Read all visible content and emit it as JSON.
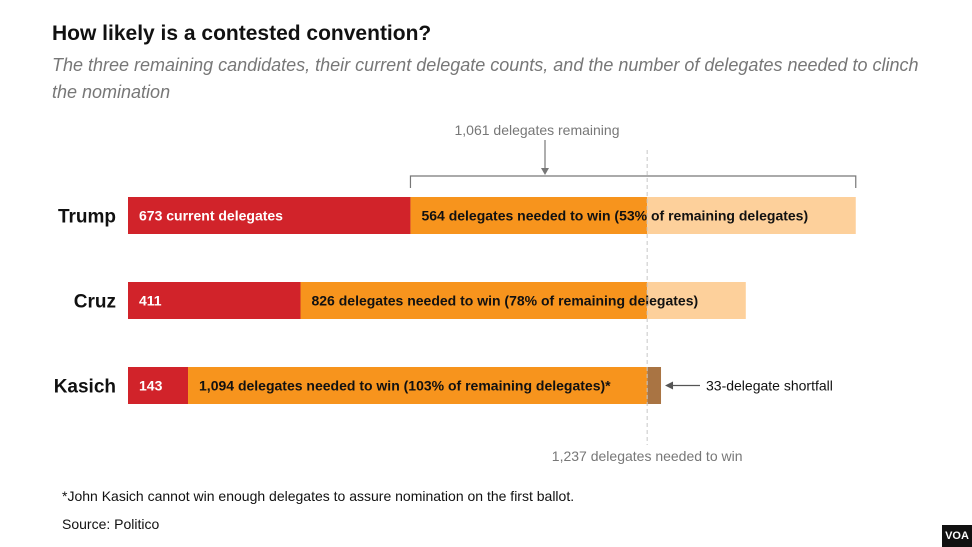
{
  "title": "How likely is a contested convention?",
  "subtitle": "The three remaining candidates, their current delegate counts, and the number of delegates needed to clinch the nomination",
  "footnote": "*John Kasich cannot win enough delegates to assure nomination on the first ballot.",
  "source": "Source: Politico",
  "logo": "VOA",
  "colors": {
    "current": "#d1232a",
    "needed": "#f7941d",
    "remaining": "#fdd09b",
    "shortfall": "#a97443",
    "annotation": "#777777"
  },
  "chart_data": {
    "type": "bar",
    "orientation": "horizontal",
    "stacked": true,
    "total_scale": 1734,
    "remaining_delegates": 1061,
    "needed_to_win": 1237,
    "categories": [
      "Trump",
      "Cruz",
      "Kasich"
    ],
    "series": [
      {
        "key": "current",
        "values": [
          673,
          411,
          143
        ]
      },
      {
        "key": "needed",
        "values": [
          564,
          826,
          1094
        ]
      },
      {
        "key": "remaining",
        "values": [
          497,
          235,
          0
        ]
      },
      {
        "key": "shortfall",
        "values": [
          0,
          0,
          33
        ]
      }
    ],
    "bar_labels": [
      {
        "current": "673 current delegates",
        "needed": "564 delegates needed to win (53% of remaining delegates)"
      },
      {
        "current": "411",
        "needed": "826 delegates needed to win (78% of remaining delegates)"
      },
      {
        "current": "143",
        "needed": "1,094 delegates needed to win (103% of remaining delegates)*"
      }
    ],
    "annotations": {
      "remaining": "1,061 delegates remaining",
      "threshold": "1,237 delegates needed to win",
      "shortfall": "33-delegate shortfall"
    }
  }
}
